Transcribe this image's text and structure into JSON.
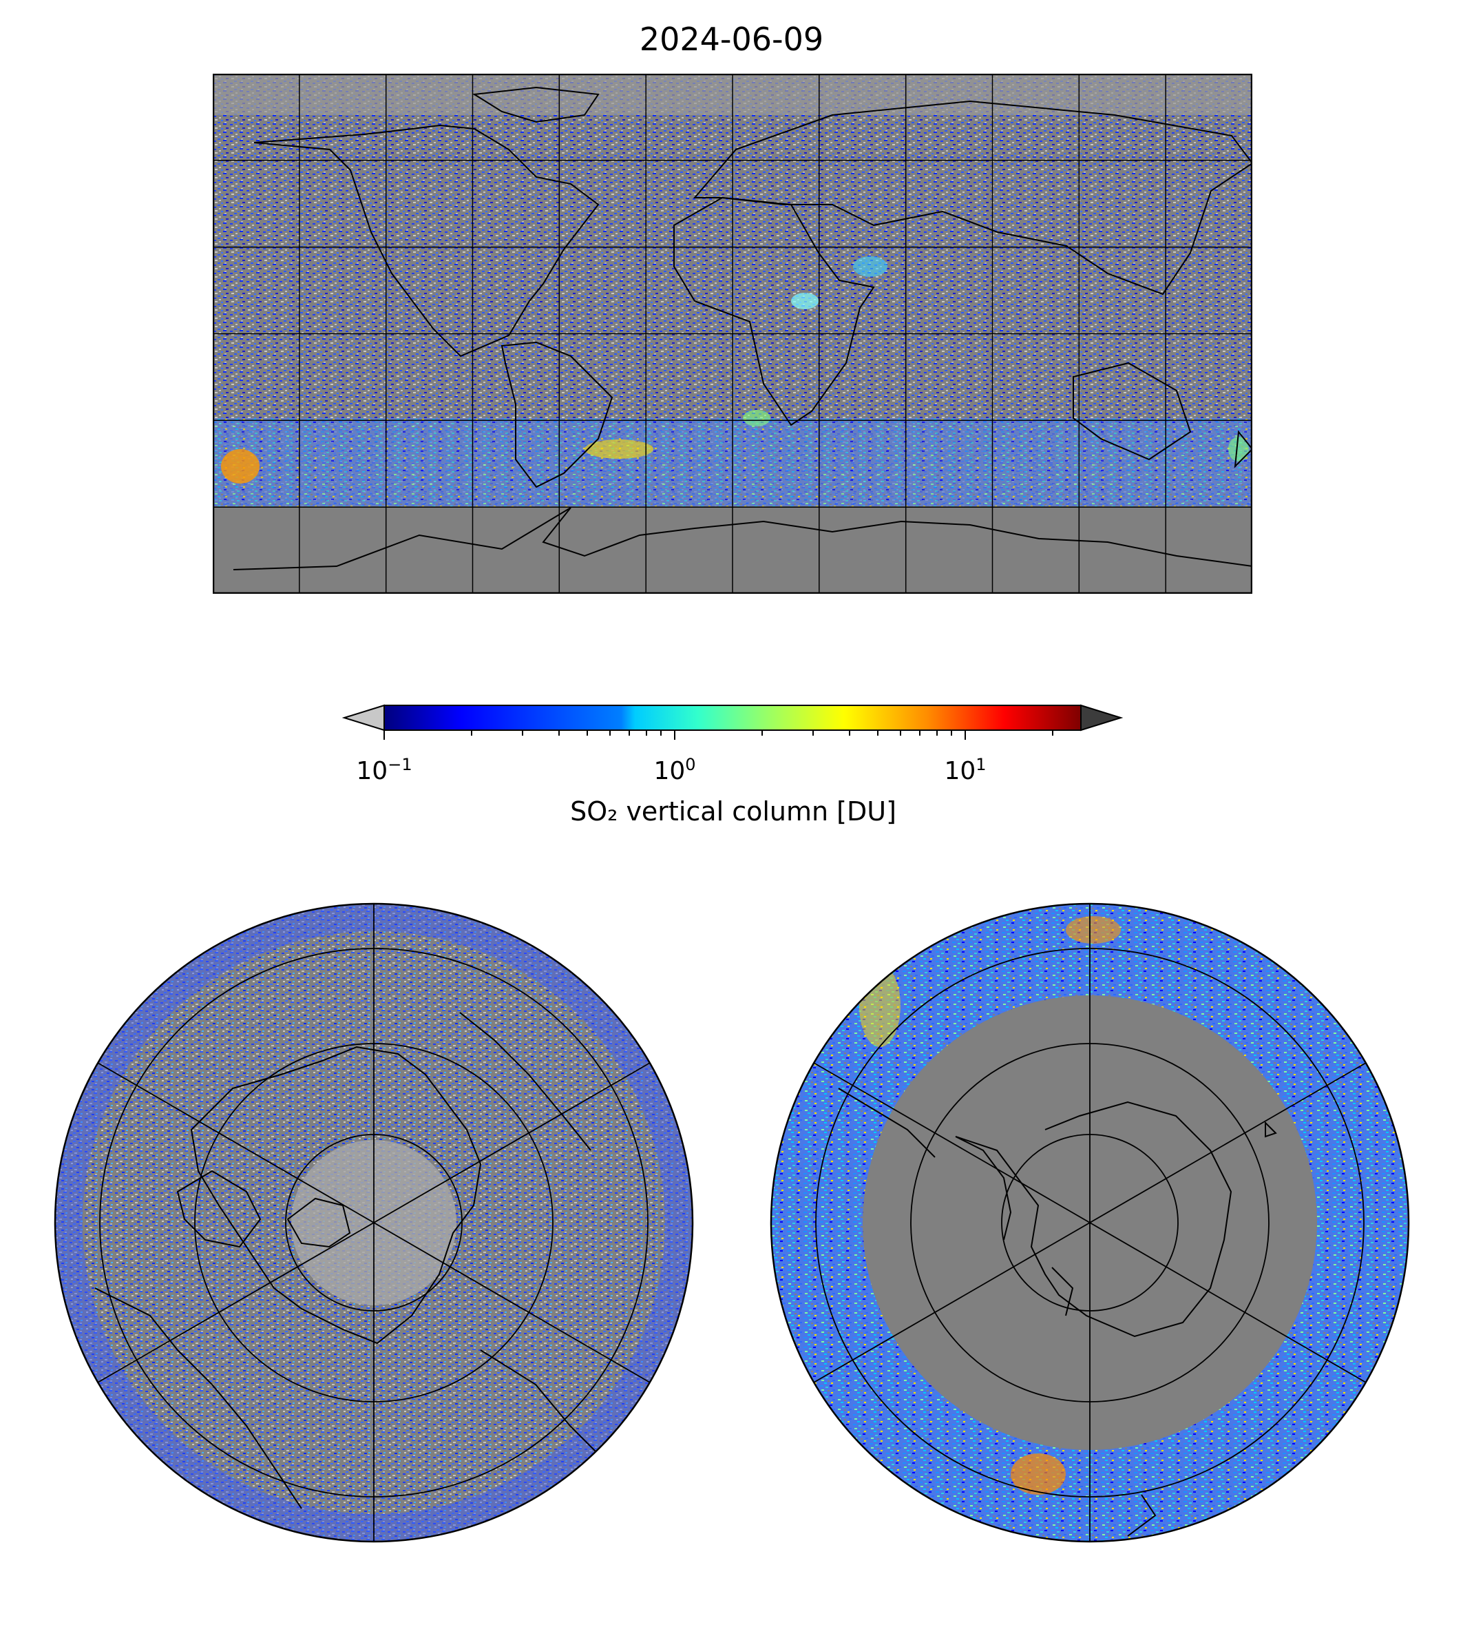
{
  "title": "2024-06-09",
  "colorbar": {
    "label": "SO₂ vertical column [DU]",
    "scale": "log",
    "range": [
      0.1,
      25
    ],
    "ticks": [
      {
        "base": "10",
        "exp": "−1",
        "value": 0.1
      },
      {
        "base": "10",
        "exp": "0",
        "value": 1
      },
      {
        "base": "10",
        "exp": "1",
        "value": 10
      }
    ],
    "colormap": [
      "#00007f",
      "#0000ff",
      "#007fff",
      "#00ffff",
      "#7fff7f",
      "#ffff00",
      "#ff7f00",
      "#ff0000",
      "#7f0000"
    ],
    "under_color": "#c8c8c8",
    "over_color": "#3c3c3c"
  },
  "colors": {
    "background_gray": "#808080",
    "light_gray": "#c0c0c0",
    "coastline": "#000000"
  }
}
